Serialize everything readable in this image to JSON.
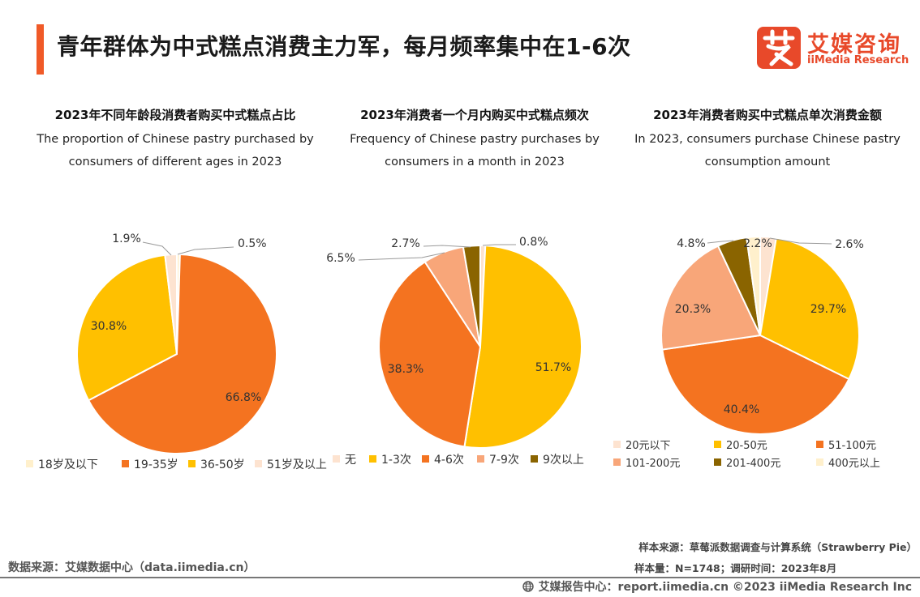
{
  "page": {
    "title": "青年群体为中式糕点消费主力军，每月频率集中在1-6次",
    "logo_cn": "艾媒咨询",
    "logo_en": "iiMedia Research",
    "source": "数据来源：艾媒数据中心（data.iimedia.cn）",
    "sample_source": "样本来源：草莓派数据调查与计算系统（Strawberry Pie）",
    "sample_size": "样本量：N=1748；调研时间：2023年8月",
    "copyright": "艾媒报告中心：report.iimedia.cn  ©2023  iiMedia Research  Inc"
  },
  "colors": {
    "accent": "#f05a28",
    "brand": "#e8492a",
    "light": "#fde3d0",
    "cream": "#fff0cc",
    "yellow": "#ffc000",
    "orange": "#f47320",
    "salmon": "#f8a679",
    "olive": "#8a6400"
  },
  "chart_data": [
    {
      "type": "pie",
      "title": "2023年不同年龄段消费者购买中式糕点占比",
      "subtitle": "The proportion of Chinese pastry purchased by consumers of different ages in 2023",
      "legend_position": "bottom",
      "slices": [
        {
          "label": "18岁及以下",
          "value": 0.5,
          "display": "0.5%",
          "color": "#fff0cc"
        },
        {
          "label": "19-35岁",
          "value": 66.8,
          "display": "66.8%",
          "color": "#f47320"
        },
        {
          "label": "36-50岁",
          "value": 30.8,
          "display": "30.8%",
          "color": "#ffc000"
        },
        {
          "label": "51岁及以上",
          "value": 1.9,
          "display": "1.9%",
          "color": "#fde3d0"
        }
      ]
    },
    {
      "type": "pie",
      "title": "2023年消费者一个月内购买中式糕点频次",
      "subtitle": "Frequency of Chinese pastry purchases by consumers in a month in 2023",
      "legend_position": "bottom",
      "slices": [
        {
          "label": "无",
          "value": 0.8,
          "display": "0.8%",
          "color": "#fde3d0"
        },
        {
          "label": "1-3次",
          "value": 51.7,
          "display": "51.7%",
          "color": "#ffc000"
        },
        {
          "label": "4-6次",
          "value": 38.3,
          "display": "38.3%",
          "color": "#f47320"
        },
        {
          "label": "7-9次",
          "value": 6.5,
          "display": "6.5%",
          "color": "#f8a679"
        },
        {
          "label": "9次以上",
          "value": 2.7,
          "display": "2.7%",
          "color": "#8a6400"
        }
      ]
    },
    {
      "type": "pie",
      "title": "2023年消费者购买中式糕点单次消费金额",
      "subtitle": "In 2023, consumers purchase Chinese pastry consumption amount",
      "legend_position": "bottom",
      "slices": [
        {
          "label": "20元以下",
          "value": 2.6,
          "display": "2.6%",
          "color": "#fde3d0"
        },
        {
          "label": "20-50元",
          "value": 29.7,
          "display": "29.7%",
          "color": "#ffc000"
        },
        {
          "label": "51-100元",
          "value": 40.4,
          "display": "40.4%",
          "color": "#f47320"
        },
        {
          "label": "101-200元",
          "value": 20.3,
          "display": "20.3%",
          "color": "#f8a679"
        },
        {
          "label": "201-400元",
          "value": 4.8,
          "display": "4.8%",
          "color": "#8a6400"
        },
        {
          "label": "400元以上",
          "value": 2.2,
          "display": "2.2%",
          "color": "#fff0cc"
        }
      ]
    }
  ]
}
